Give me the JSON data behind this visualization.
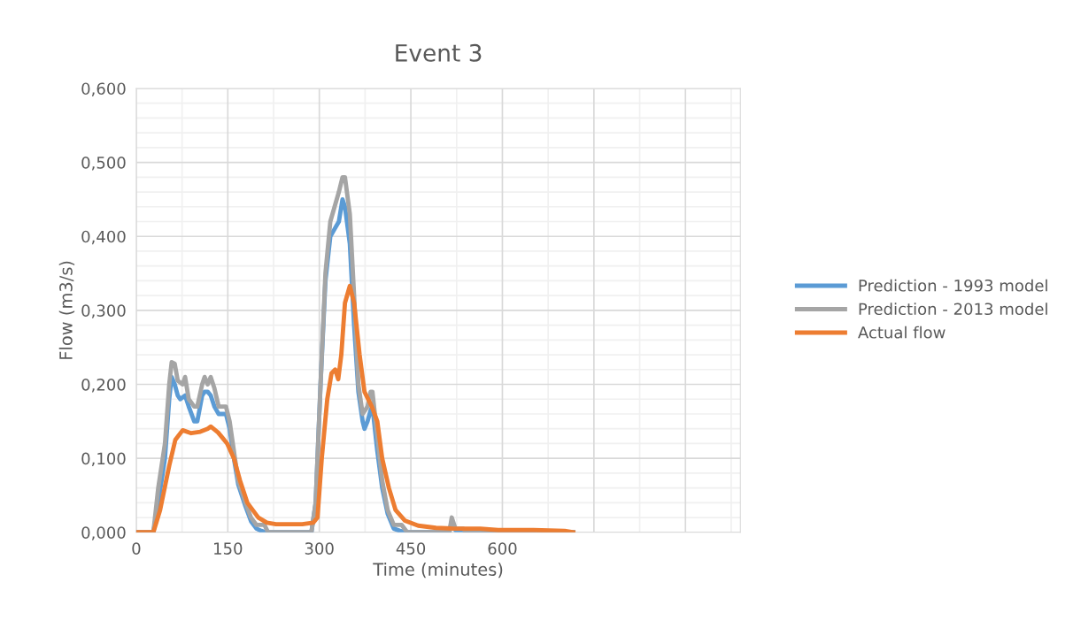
{
  "chart_data": {
    "type": "line",
    "title": "Event 3",
    "xlabel": "Time (minutes)",
    "ylabel": "Flow (m3/s)",
    "xlim": [
      0,
      990
    ],
    "xticks": [
      0,
      150,
      300,
      450,
      600,
      {
        "value": 750,
        "label": null
      },
      {
        "value": 900,
        "label": null
      }
    ],
    "ylim": [
      0,
      0.6
    ],
    "yticks": [
      {
        "value": 0,
        "label": "0,000"
      },
      {
        "value": 0.1,
        "label": "0,100"
      },
      {
        "value": 0.2,
        "label": "0,200"
      },
      {
        "value": 0.3,
        "label": "0,300"
      },
      {
        "value": 0.4,
        "label": "0,400"
      },
      {
        "value": 0.5,
        "label": "0,500"
      },
      {
        "value": 0.6,
        "label": "0,600"
      }
    ],
    "grid": true,
    "legend": "right",
    "marker": "none",
    "line_style": "solid",
    "series": [
      {
        "name": "Prediction - 1993 model",
        "color": "#5b9bd5",
        "x": [
          0,
          28,
          36,
          47,
          54,
          58,
          63,
          68,
          72,
          80,
          86,
          95,
          100,
          108,
          112,
          117,
          122,
          128,
          135,
          147,
          153,
          160,
          167,
          179,
          188,
          197,
          205,
          212,
          287,
          294,
          302,
          310,
          318,
          325,
          332,
          338,
          342,
          350,
          357,
          364,
          371,
          374,
          379,
          384,
          387,
          395,
          403,
          412,
          422,
          432,
          444,
          513,
          517,
          523,
          536,
          540,
          716
        ],
        "values": [
          0,
          0,
          0.04,
          0.1,
          0.18,
          0.21,
          0.2,
          0.185,
          0.18,
          0.185,
          0.17,
          0.15,
          0.15,
          0.185,
          0.19,
          0.19,
          0.185,
          0.17,
          0.16,
          0.16,
          0.14,
          0.1,
          0.065,
          0.035,
          0.015,
          0.005,
          0.002,
          0,
          0,
          0.04,
          0.2,
          0.34,
          0.4,
          0.41,
          0.42,
          0.45,
          0.44,
          0.39,
          0.28,
          0.19,
          0.15,
          0.14,
          0.15,
          0.165,
          0.17,
          0.11,
          0.06,
          0.025,
          0.005,
          0.002,
          0,
          0,
          0.015,
          0.003,
          0.003,
          0,
          0
        ]
      },
      {
        "name": "Prediction - 2013 model",
        "color": "#a5a5a5",
        "x": [
          0,
          28,
          36,
          47,
          54,
          58,
          63,
          68,
          76,
          80,
          86,
          95,
          100,
          108,
          112,
          117,
          122,
          128,
          135,
          147,
          153,
          160,
          167,
          179,
          188,
          197,
          210,
          216,
          287,
          294,
          302,
          310,
          318,
          325,
          332,
          338,
          342,
          350,
          357,
          364,
          371,
          379,
          384,
          387,
          395,
          403,
          412,
          422,
          435,
          444,
          513,
          517,
          523,
          536,
          540,
          716
        ],
        "values": [
          0,
          0,
          0.06,
          0.12,
          0.2,
          0.23,
          0.228,
          0.205,
          0.2,
          0.21,
          0.18,
          0.17,
          0.17,
          0.2,
          0.21,
          0.2,
          0.21,
          0.195,
          0.17,
          0.17,
          0.15,
          0.11,
          0.07,
          0.04,
          0.02,
          0.01,
          0.01,
          0,
          0,
          0.04,
          0.2,
          0.35,
          0.42,
          0.44,
          0.46,
          0.48,
          0.48,
          0.43,
          0.32,
          0.2,
          0.16,
          0.17,
          0.19,
          0.19,
          0.13,
          0.07,
          0.03,
          0.01,
          0.01,
          0,
          0,
          0.02,
          0.005,
          0.005,
          0,
          0
        ]
      },
      {
        "name": "Actual flow",
        "color": "#ed7d31",
        "x": [
          0,
          28,
          39,
          54,
          64,
          76,
          90,
          105,
          117,
          122,
          134,
          149,
          160,
          170,
          182,
          200,
          214,
          229,
          272,
          290,
          297,
          304,
          313,
          320,
          326,
          331,
          336,
          342,
          350,
          357,
          366,
          374,
          386,
          395,
          403,
          414,
          425,
          440,
          462,
          491,
          520,
          564,
          593,
          651,
          702,
          716
        ],
        "values": [
          0,
          0,
          0.03,
          0.09,
          0.125,
          0.138,
          0.134,
          0.136,
          0.14,
          0.143,
          0.135,
          0.12,
          0.1,
          0.07,
          0.04,
          0.02,
          0.013,
          0.011,
          0.011,
          0.013,
          0.02,
          0.1,
          0.18,
          0.215,
          0.22,
          0.207,
          0.24,
          0.31,
          0.333,
          0.31,
          0.24,
          0.19,
          0.17,
          0.15,
          0.1,
          0.06,
          0.03,
          0.016,
          0.009,
          0.006,
          0.005,
          0.005,
          0.003,
          0.003,
          0.002,
          0
        ]
      }
    ]
  }
}
